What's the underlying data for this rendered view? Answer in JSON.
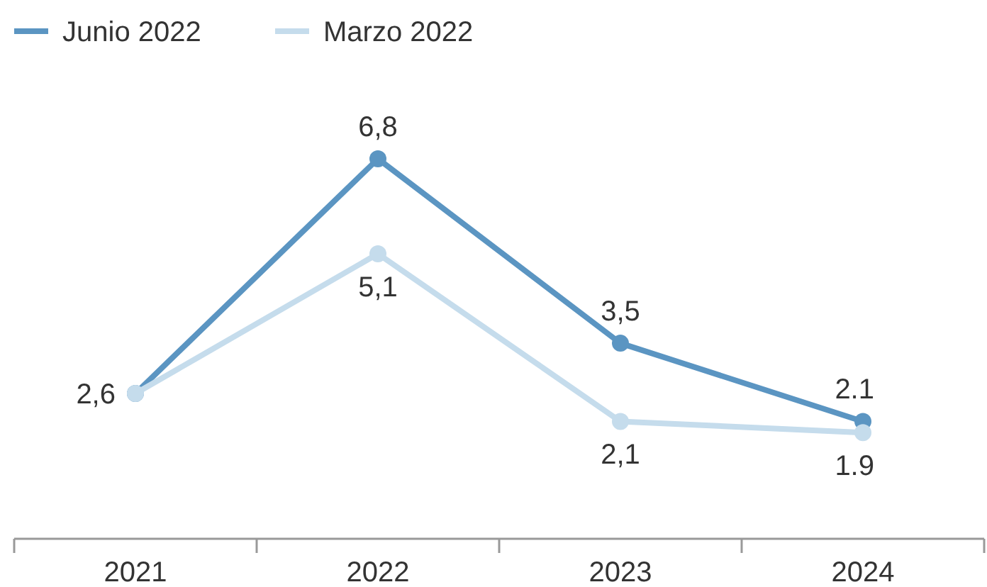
{
  "chart_data": {
    "type": "line",
    "categories": [
      "2021",
      "2022",
      "2023",
      "2024"
    ],
    "relative": false,
    "legend": "top left",
    "marker": "circle",
    "series": [
      {
        "name": "Junio 2022",
        "color": "#5b95c2",
        "values": [
          2.6,
          6.8,
          3.5,
          2.1
        ],
        "value_labels": [
          "2,6",
          "6,8",
          "3,5",
          "2.1"
        ]
      },
      {
        "name": "Marzo 2022",
        "color": "#c5dcec",
        "values": [
          2.6,
          5.1,
          2.1,
          1.9
        ],
        "value_labels": [
          null,
          "5,1",
          "2,1",
          "1.9"
        ]
      }
    ]
  }
}
